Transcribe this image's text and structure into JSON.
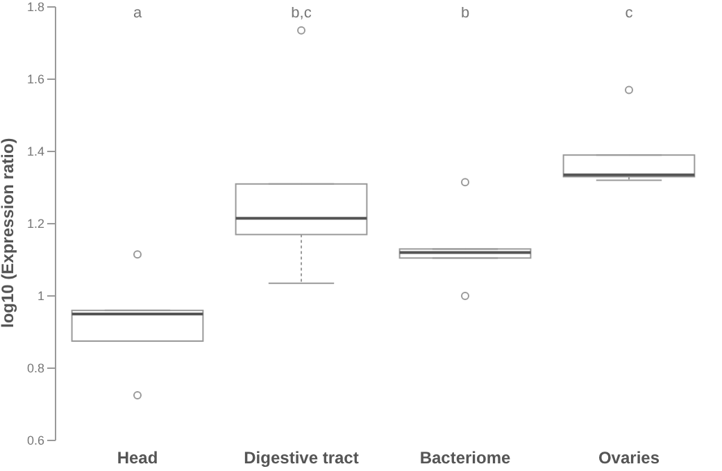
{
  "chart_data": {
    "type": "box",
    "ylabel": "log10 (Expression ratio)",
    "categories": [
      "Head",
      "Digestive tract",
      "Bacteriome",
      "Ovaries"
    ],
    "boxes": [
      {
        "low": 0.875,
        "q1": 0.875,
        "median": 0.95,
        "q3": 0.96,
        "high": 0.96,
        "outliers": [
          1.115,
          0.725
        ]
      },
      {
        "low": 1.035,
        "q1": 1.17,
        "median": 1.215,
        "q3": 1.31,
        "high": 1.31,
        "outliers": [
          1.735
        ]
      },
      {
        "low": 1.105,
        "q1": 1.105,
        "median": 1.12,
        "q3": 1.13,
        "high": 1.13,
        "outliers": [
          1.315,
          1.0
        ]
      },
      {
        "low": 1.32,
        "q1": 1.33,
        "median": 1.335,
        "q3": 1.39,
        "high": 1.39,
        "outliers": [
          1.57
        ]
      }
    ],
    "color": "#999999",
    "ylim": [
      0.6,
      1.8
    ],
    "yticks": [
      0.6,
      0.8,
      1,
      1.2,
      1.4,
      1.6,
      1.8
    ],
    "annotations": [
      "a",
      "b,c",
      "b",
      "c"
    ],
    "grid": false,
    "legend": false,
    "line_style": "dotted"
  }
}
